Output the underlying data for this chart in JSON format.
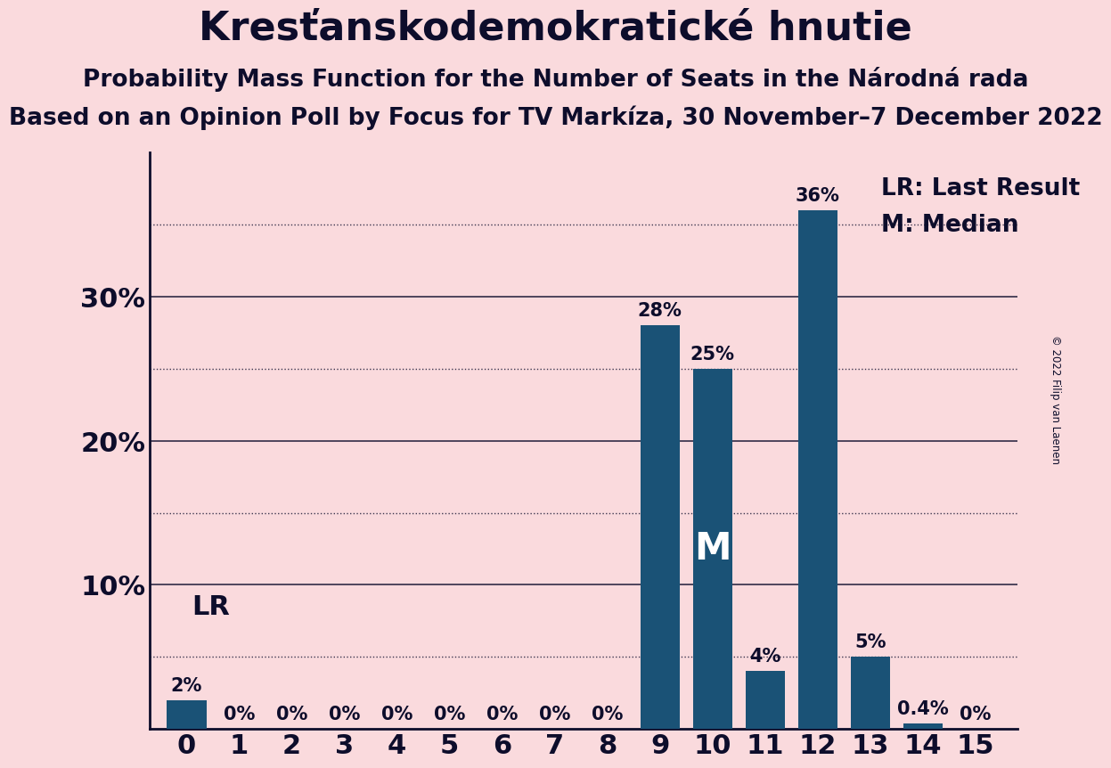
{
  "title": "Kresťanskodemokratické hnutie",
  "subtitle1": "Probability Mass Function for the Number of Seats in the Národná rada",
  "subtitle2": "Based on an Opinion Poll by Focus for TV Markíza, 30 November–7 December 2022",
  "copyright": "© 2022 Filip van Laenen",
  "categories": [
    0,
    1,
    2,
    3,
    4,
    5,
    6,
    7,
    8,
    9,
    10,
    11,
    12,
    13,
    14,
    15
  ],
  "values": [
    2,
    0,
    0,
    0,
    0,
    0,
    0,
    0,
    0,
    28,
    25,
    4,
    36,
    5,
    0.4,
    0
  ],
  "bar_color": "#1a5276",
  "background_color": "#fadadd",
  "text_color": "#0d0d2b",
  "bar_labels": [
    "2%",
    "0%",
    "0%",
    "0%",
    "0%",
    "0%",
    "0%",
    "0%",
    "0%",
    "28%",
    "25%",
    "4%",
    "36%",
    "5%",
    "0.4%",
    "0%"
  ],
  "LR_seat": 0,
  "median_seat": 10,
  "ylim": [
    0,
    40
  ],
  "yticks": [
    10,
    20,
    30
  ],
  "ytick_labels": [
    "10%",
    "20%",
    "30%"
  ],
  "dotted_lines": [
    5,
    15,
    25,
    35
  ],
  "solid_lines": [
    10,
    20,
    30
  ],
  "legend_LR": "LR: Last Result",
  "legend_M": "M: Median",
  "title_fontsize": 32,
  "subtitle1_fontsize": 19,
  "subtitle2_fontsize": 19,
  "axis_label_fontsize": 22,
  "bar_label_fontsize": 15,
  "lr_label_fontsize": 22,
  "median_fontsize": 30,
  "legend_fontsize": 19
}
